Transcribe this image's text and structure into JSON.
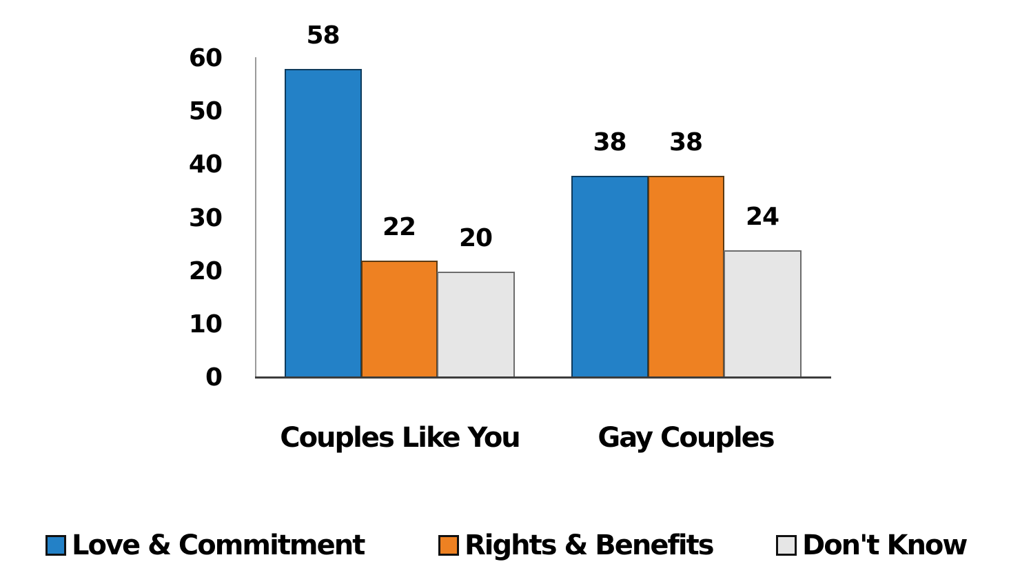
{
  "chart_data": {
    "type": "bar",
    "title": "",
    "xlabel": "",
    "ylabel": "",
    "ylim": [
      0,
      60
    ],
    "yticks": [
      0,
      10,
      20,
      30,
      40,
      50,
      60
    ],
    "grid": false,
    "legend_position": "bottom",
    "categories": [
      "Couples Like You",
      "Gay Couples"
    ],
    "series": [
      {
        "name": "Love & Commitment",
        "color": "#2381c7",
        "values": [
          58,
          38
        ]
      },
      {
        "name": "Rights & Benefits",
        "color": "#ee8122",
        "values": [
          22,
          38
        ]
      },
      {
        "name": "Don't Know",
        "color": "#e6e6e6",
        "values": [
          20,
          24
        ]
      }
    ]
  },
  "axis": {
    "ticks": [
      "0",
      "10",
      "20",
      "30",
      "40",
      "50",
      "60"
    ]
  },
  "categories": {
    "c0": "Couples Like You",
    "c1": "Gay Couples"
  },
  "labels": {
    "c0s0": "58",
    "c0s1": "22",
    "c0s2": "20",
    "c1s0": "38",
    "c1s1": "38",
    "c1s2": "24"
  },
  "legend": {
    "s0": "Love & Commitment",
    "s1": "Rights & Benefits",
    "s2": "Don't Know"
  }
}
